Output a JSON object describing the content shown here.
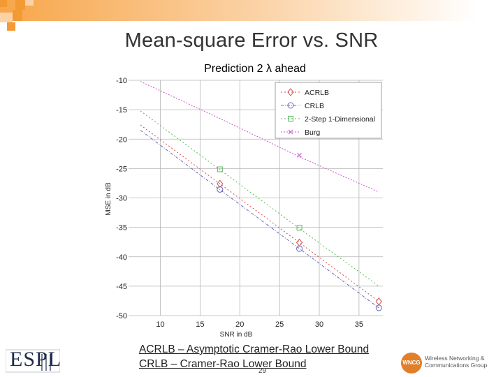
{
  "slide": {
    "title": "Mean-square Error vs. SNR",
    "footnotes": [
      "ACRLB – Asymptotic Cramer-Rao Lower Bound",
      "CRLB – Cramer-Rao Lower Bound"
    ],
    "page_number": "29",
    "left_logo": "ESPL",
    "right_logo": {
      "badge": "WNCG",
      "lines": [
        "Wireless Networking &",
        "Communications Group"
      ]
    }
  },
  "chart_data": {
    "type": "line",
    "title": "Prediction 2 λ ahead",
    "xlabel": "SNR in dB",
    "ylabel": "MSE in dB",
    "xlim": [
      6,
      38
    ],
    "ylim": [
      -50,
      -10
    ],
    "xticks": [
      10,
      15,
      20,
      25,
      30,
      35
    ],
    "yticks": [
      -10,
      -15,
      -20,
      -25,
      -30,
      -35,
      -40,
      -45,
      -50
    ],
    "grid": true,
    "legend_position": "top-right",
    "series": [
      {
        "name": "ACRLB",
        "marker": "diamond",
        "color": "#d94a4a",
        "dash": "2,3",
        "x": [
          7.5,
          17.5,
          27.5,
          37.5
        ],
        "y": [
          -17.6,
          -27.6,
          -37.6,
          -47.6
        ],
        "marker_x": [
          17.5,
          27.5,
          37.5
        ]
      },
      {
        "name": "CRLB",
        "marker": "circle",
        "color": "#6666bb",
        "dash": "4,2,1,2",
        "x": [
          7.5,
          17.5,
          27.5,
          37.5
        ],
        "y": [
          -18.5,
          -28.6,
          -38.6,
          -48.7
        ],
        "marker_x": [
          17.5,
          27.5,
          37.5
        ]
      },
      {
        "name": "2-Step 1-Dimensional",
        "marker": "square",
        "color": "#55bb55",
        "dash": "2,3",
        "x": [
          7.5,
          17.5,
          27.5,
          37.5
        ],
        "y": [
          -15.2,
          -25.2,
          -35.2,
          -45.0
        ],
        "marker_x": [
          17.5,
          27.5
        ]
      },
      {
        "name": "Burg",
        "marker": "x",
        "color": "#cc55cc",
        "dash": "2,2",
        "x": [
          7.5,
          17.5,
          27.5,
          37.5
        ],
        "y": [
          -10.2,
          -16.5,
          -23.0,
          -29.0
        ],
        "marker_x": [
          27.5
        ]
      }
    ]
  }
}
